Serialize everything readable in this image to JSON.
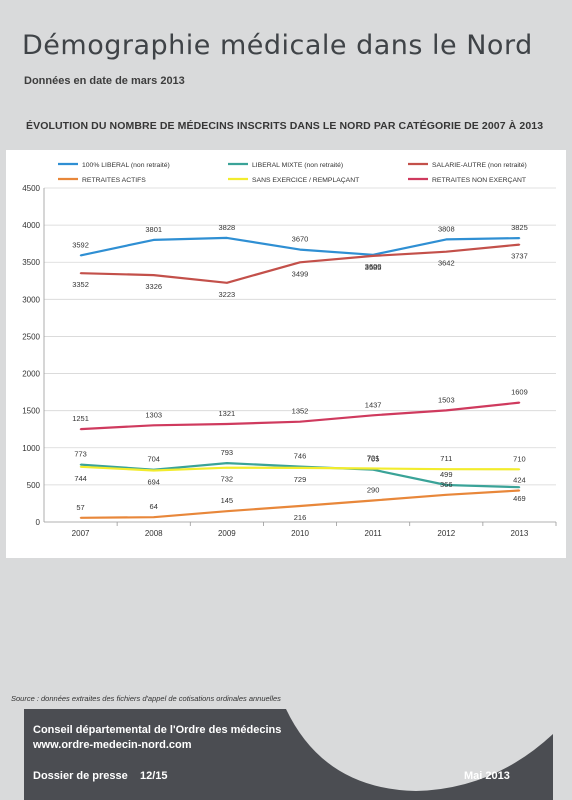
{
  "header": {
    "title": "Démographie médicale dans le Nord",
    "subtitle": "Données en date de mars 2013",
    "chart_heading": "ÉVOLUTION DU NOMBRE DE MÉDECINS INSCRITS DANS LE NORD PAR CATÉGORIE DE 2007 À 2013"
  },
  "chart_data": {
    "type": "line",
    "title": "",
    "xlabel": "",
    "ylabel": "",
    "x": [
      "2007",
      "2008",
      "2009",
      "2010",
      "2011",
      "2012",
      "2013"
    ],
    "ylim": [
      0,
      4500
    ],
    "yticks": [
      "0",
      "500",
      "1000",
      "1500",
      "2000",
      "2500",
      "3000",
      "3500",
      "4000",
      "4500"
    ],
    "grid": "horizontal",
    "legend": "top",
    "source": "Source : données extraites des fichiers d'appel de cotisations ordinales annuelles",
    "series": [
      {
        "name": "100% LIBERAL (non retraité)",
        "color": "#2f8fd3",
        "values": [
          3592,
          3801,
          3828,
          3670,
          3600,
          3808,
          3825
        ],
        "labels": [
          "3592",
          "3801",
          "3828",
          "3670",
          "3600",
          "3808",
          "3825"
        ]
      },
      {
        "name": "LIBERAL MIXTE (non retraité)",
        "color": "#3aa398",
        "values": [
          773,
          704,
          793,
          746,
          705,
          499,
          469
        ],
        "labels": [
          "773",
          "704",
          "793",
          "746",
          "705",
          "499",
          "469"
        ]
      },
      {
        "name": "SALARIE-AUTRE (non retraité)",
        "color": "#c3504a",
        "values": [
          3352,
          3326,
          3223,
          3499,
          3585,
          3642,
          3737
        ],
        "labels": [
          "3352",
          "3326",
          "3223",
          "3499",
          "3585",
          "3642",
          "3737"
        ]
      },
      {
        "name": "RETRAITES ACTIFS",
        "color": "#e8873a",
        "values": [
          57,
          64,
          145,
          216,
          290,
          366,
          424
        ],
        "labels": [
          "57",
          "64",
          "145",
          "216",
          "290",
          "366",
          "424"
        ]
      },
      {
        "name": "SANS EXERCICE / REMPLAÇANT",
        "color": "#f2ec2d",
        "values": [
          744,
          694,
          732,
          729,
          721,
          711,
          710
        ],
        "labels": [
          "744",
          "694",
          "732",
          "729",
          "721",
          "711",
          "710"
        ]
      },
      {
        "name": "RETRAITES NON EXERÇANT",
        "color": "#cf3a5e",
        "values": [
          1251,
          1303,
          1321,
          1352,
          1437,
          1503,
          1609
        ],
        "labels": [
          "1251",
          "1303",
          "1321",
          "1352",
          "1437",
          "1503",
          "1609"
        ]
      }
    ]
  },
  "footer": {
    "org": "Conseil départemental de l'Ordre des médecins",
    "website": "www.ordre-medecin-nord.com",
    "dossier": "Dossier de presse",
    "page": "12/15",
    "date": "Mai 2013"
  }
}
